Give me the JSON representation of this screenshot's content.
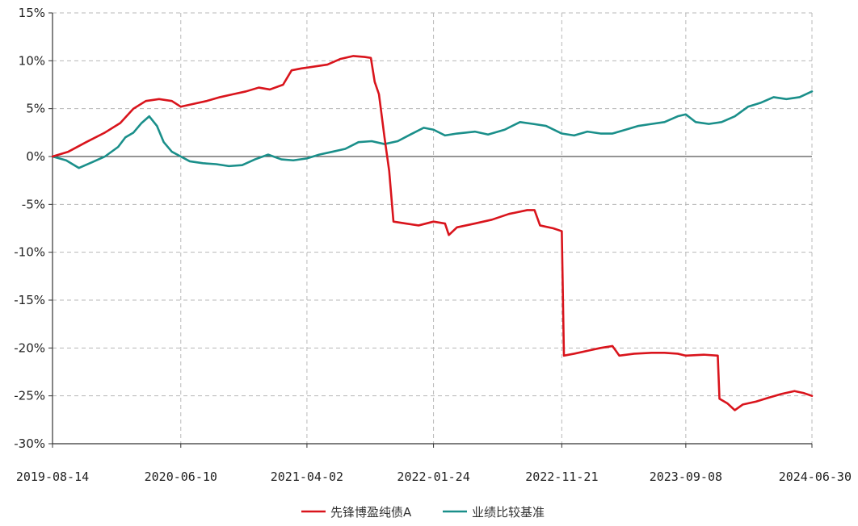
{
  "chart_data": {
    "type": "line",
    "title": "",
    "xlabel": "",
    "ylabel": "",
    "ylim": [
      -30,
      15
    ],
    "y_unit": "%",
    "yticks": [
      15,
      10,
      5,
      0,
      -5,
      -10,
      -15,
      -20,
      -25,
      -30
    ],
    "ytick_labels": [
      "15%",
      "10%",
      "5%",
      "0%",
      "-5%",
      "-10%",
      "-15%",
      "-20%",
      "-25%",
      "-30%"
    ],
    "xlim": [
      "2019-08-14",
      "2024-06-30"
    ],
    "xticks": [
      "2019-08-14",
      "2020-06-10",
      "2021-04-02",
      "2022-01-24",
      "2022-11-21",
      "2023-09-08",
      "2024-06-30"
    ],
    "grid": true,
    "legend_position": "bottom-center",
    "series": [
      {
        "name": "先锋博盈纯债A",
        "color": "#d9141c",
        "points": [
          [
            "2019-08-14",
            0.0
          ],
          [
            "2019-09-20",
            0.5
          ],
          [
            "2019-11-01",
            1.5
          ],
          [
            "2019-12-15",
            2.5
          ],
          [
            "2020-01-20",
            3.5
          ],
          [
            "2020-02-20",
            5.0
          ],
          [
            "2020-03-20",
            5.8
          ],
          [
            "2020-04-20",
            6.0
          ],
          [
            "2020-05-20",
            5.8
          ],
          [
            "2020-06-10",
            5.2
          ],
          [
            "2020-07-10",
            5.5
          ],
          [
            "2020-08-10",
            5.8
          ],
          [
            "2020-09-10",
            6.2
          ],
          [
            "2020-10-10",
            6.5
          ],
          [
            "2020-11-10",
            6.8
          ],
          [
            "2020-12-10",
            7.2
          ],
          [
            "2021-01-05",
            7.0
          ],
          [
            "2021-02-05",
            7.5
          ],
          [
            "2021-02-25",
            9.0
          ],
          [
            "2021-03-20",
            9.2
          ],
          [
            "2021-04-20",
            9.4
          ],
          [
            "2021-05-20",
            9.6
          ],
          [
            "2021-06-20",
            10.2
          ],
          [
            "2021-07-20",
            10.5
          ],
          [
            "2021-08-15",
            10.4
          ],
          [
            "2021-08-30",
            10.3
          ],
          [
            "2021-09-08",
            7.8
          ],
          [
            "2021-09-18",
            6.5
          ],
          [
            "2021-10-01",
            2.0
          ],
          [
            "2021-10-12",
            -1.5
          ],
          [
            "2021-10-22",
            -6.8
          ],
          [
            "2021-11-20",
            -7.0
          ],
          [
            "2021-12-20",
            -7.2
          ],
          [
            "2022-01-24",
            -6.8
          ],
          [
            "2022-02-20",
            -7.0
          ],
          [
            "2022-03-01",
            -8.2
          ],
          [
            "2022-03-20",
            -7.4
          ],
          [
            "2022-05-01",
            -7.0
          ],
          [
            "2022-06-10",
            -6.6
          ],
          [
            "2022-07-20",
            -6.0
          ],
          [
            "2022-09-01",
            -5.6
          ],
          [
            "2022-09-18",
            -5.6
          ],
          [
            "2022-10-01",
            -7.2
          ],
          [
            "2022-11-01",
            -7.5
          ],
          [
            "2022-11-21",
            -7.8
          ],
          [
            "2022-11-26",
            -20.8
          ],
          [
            "2022-12-20",
            -20.6
          ],
          [
            "2023-01-20",
            -20.3
          ],
          [
            "2023-02-20",
            -20.0
          ],
          [
            "2023-03-20",
            -19.8
          ],
          [
            "2023-04-05",
            -20.8
          ],
          [
            "2023-05-10",
            -20.6
          ],
          [
            "2023-06-20",
            -20.5
          ],
          [
            "2023-07-20",
            -20.5
          ],
          [
            "2023-08-20",
            -20.6
          ],
          [
            "2023-09-08",
            -20.8
          ],
          [
            "2023-10-20",
            -20.7
          ],
          [
            "2023-11-22",
            -20.8
          ],
          [
            "2023-11-26",
            -25.3
          ],
          [
            "2023-12-15",
            -25.8
          ],
          [
            "2024-01-01",
            -26.5
          ],
          [
            "2024-01-20",
            -25.9
          ],
          [
            "2024-02-20",
            -25.6
          ],
          [
            "2024-03-20",
            -25.2
          ],
          [
            "2024-04-20",
            -24.8
          ],
          [
            "2024-05-20",
            -24.5
          ],
          [
            "2024-06-10",
            -24.7
          ],
          [
            "2024-06-30",
            -25.0
          ]
        ]
      },
      {
        "name": "业绩比较基准",
        "color": "#1a8f8a",
        "points": [
          [
            "2019-08-14",
            0.0
          ],
          [
            "2019-09-15",
            -0.4
          ],
          [
            "2019-10-15",
            -1.2
          ],
          [
            "2019-11-15",
            -0.6
          ],
          [
            "2019-12-15",
            0.0
          ],
          [
            "2020-01-15",
            1.0
          ],
          [
            "2020-02-01",
            2.0
          ],
          [
            "2020-02-20",
            2.5
          ],
          [
            "2020-03-10",
            3.5
          ],
          [
            "2020-03-28",
            4.2
          ],
          [
            "2020-04-15",
            3.2
          ],
          [
            "2020-05-01",
            1.5
          ],
          [
            "2020-05-20",
            0.5
          ],
          [
            "2020-06-10",
            0.0
          ],
          [
            "2020-07-01",
            -0.5
          ],
          [
            "2020-08-01",
            -0.7
          ],
          [
            "2020-09-01",
            -0.8
          ],
          [
            "2020-10-01",
            -1.0
          ],
          [
            "2020-11-01",
            -0.9
          ],
          [
            "2020-12-01",
            -0.3
          ],
          [
            "2021-01-01",
            0.2
          ],
          [
            "2021-02-01",
            -0.3
          ],
          [
            "2021-03-01",
            -0.4
          ],
          [
            "2021-04-02",
            -0.2
          ],
          [
            "2021-05-01",
            0.2
          ],
          [
            "2021-06-01",
            0.5
          ],
          [
            "2021-07-01",
            0.8
          ],
          [
            "2021-08-01",
            1.5
          ],
          [
            "2021-09-01",
            1.6
          ],
          [
            "2021-10-01",
            1.3
          ],
          [
            "2021-11-01",
            1.6
          ],
          [
            "2021-12-01",
            2.3
          ],
          [
            "2022-01-01",
            3.0
          ],
          [
            "2022-01-24",
            2.8
          ],
          [
            "2022-02-20",
            2.2
          ],
          [
            "2022-03-20",
            2.4
          ],
          [
            "2022-05-01",
            2.6
          ],
          [
            "2022-06-01",
            2.3
          ],
          [
            "2022-07-10",
            2.8
          ],
          [
            "2022-08-15",
            3.6
          ],
          [
            "2022-09-15",
            3.4
          ],
          [
            "2022-10-15",
            3.2
          ],
          [
            "2022-11-21",
            2.4
          ],
          [
            "2022-12-20",
            2.2
          ],
          [
            "2023-01-20",
            2.6
          ],
          [
            "2023-02-20",
            2.4
          ],
          [
            "2023-03-20",
            2.4
          ],
          [
            "2023-04-20",
            2.8
          ],
          [
            "2023-05-20",
            3.2
          ],
          [
            "2023-06-20",
            3.4
          ],
          [
            "2023-07-20",
            3.6
          ],
          [
            "2023-08-20",
            4.2
          ],
          [
            "2023-09-08",
            4.4
          ],
          [
            "2023-10-01",
            3.6
          ],
          [
            "2023-11-01",
            3.4
          ],
          [
            "2023-12-01",
            3.6
          ],
          [
            "2024-01-01",
            4.2
          ],
          [
            "2024-02-01",
            5.2
          ],
          [
            "2024-03-01",
            5.6
          ],
          [
            "2024-04-01",
            6.2
          ],
          [
            "2024-05-01",
            6.0
          ],
          [
            "2024-06-01",
            6.2
          ],
          [
            "2024-06-30",
            6.8
          ]
        ]
      }
    ]
  }
}
